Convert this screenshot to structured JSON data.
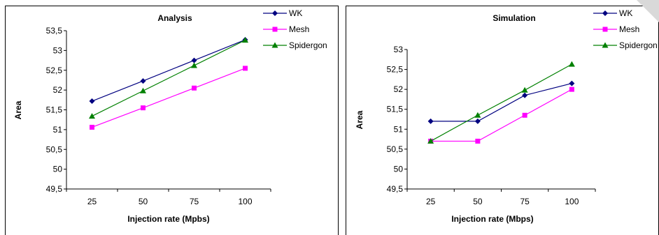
{
  "chart_data": [
    {
      "type": "line",
      "title": "Analysis",
      "xlabel": "Injection rate (Mpbs)",
      "ylabel": "Area",
      "categories": [
        "25",
        "50",
        "75",
        "100"
      ],
      "ylim": [
        49.5,
        53.5
      ],
      "yticks": [
        "49,5",
        "50",
        "50,5",
        "51",
        "51,5",
        "52",
        "52,5",
        "53",
        "53,5"
      ],
      "grid": false,
      "legend": "top-right",
      "series": [
        {
          "name": "WK",
          "color": "#000080",
          "marker": "diamond",
          "values": [
            51.72,
            52.23,
            52.75,
            53.27
          ]
        },
        {
          "name": "Mesh",
          "color": "#ff00ff",
          "marker": "square",
          "values": [
            51.06,
            51.55,
            52.05,
            52.55
          ]
        },
        {
          "name": "Spidergon",
          "color": "#008000",
          "marker": "triangle",
          "values": [
            51.34,
            51.98,
            52.62,
            53.26
          ]
        }
      ]
    },
    {
      "type": "line",
      "title": "Simulation",
      "xlabel": "Injection rate (Mbps)",
      "ylabel": "Area",
      "categories": [
        "25",
        "50",
        "75",
        "100"
      ],
      "ylim": [
        49.5,
        53
      ],
      "yticks": [
        "49,5",
        "50",
        "50,5",
        "51",
        "51,5",
        "52",
        "52,5",
        "53"
      ],
      "grid": false,
      "legend": "top-right",
      "series": [
        {
          "name": "WK",
          "color": "#000080",
          "marker": "diamond",
          "values": [
            51.2,
            51.2,
            51.85,
            52.15
          ]
        },
        {
          "name": "Mesh",
          "color": "#ff00ff",
          "marker": "square",
          "values": [
            50.7,
            50.7,
            51.35,
            52.0
          ]
        },
        {
          "name": "Spidergon",
          "color": "#008000",
          "marker": "triangle",
          "values": [
            50.7,
            51.35,
            51.98,
            52.63
          ]
        }
      ]
    }
  ]
}
